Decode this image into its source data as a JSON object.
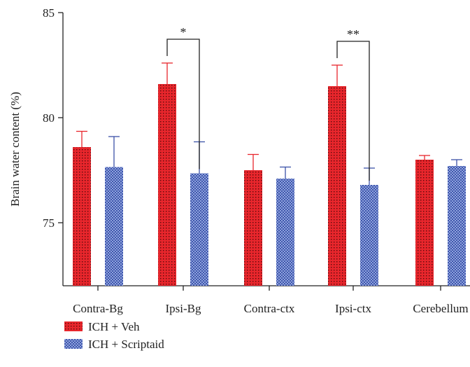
{
  "chart_data": {
    "type": "bar",
    "ylabel": "Brain water content (%)",
    "ylim": [
      72,
      85
    ],
    "yticks": [
      75,
      80,
      85
    ],
    "categories": [
      "Contra-Bg",
      "Ipsi-Bg",
      "Contra-ctx",
      "Ipsi-ctx",
      "Cerebellum"
    ],
    "series": [
      {
        "name": "ICH + Veh",
        "values": [
          78.6,
          81.6,
          77.5,
          81.5,
          78.0
        ],
        "errors": [
          0.75,
          1.0,
          0.75,
          1.0,
          0.2
        ],
        "color": "#e8262c",
        "pattern": "dots"
      },
      {
        "name": "ICH + Scriptaid",
        "values": [
          77.65,
          77.35,
          77.1,
          76.8,
          77.7
        ],
        "errors": [
          1.45,
          1.5,
          0.55,
          0.8,
          0.3
        ],
        "color": "#3b52a8",
        "pattern": "checker"
      }
    ],
    "annotations": [
      {
        "category": "Ipsi-Bg",
        "label": "*"
      },
      {
        "category": "Ipsi-ctx",
        "label": "**"
      }
    ],
    "legend_position": "bottom-left"
  }
}
